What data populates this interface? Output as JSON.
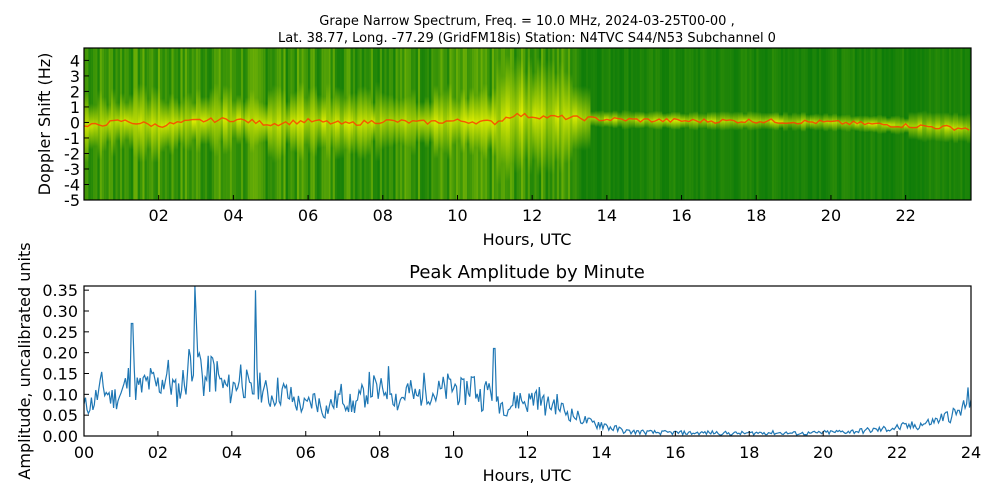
{
  "title": {
    "line1": "Grape Narrow Spectrum, Freq. = 10.0 MHz, 2024-03-25T00-00 ,",
    "line2": "Lat.  38.77, Long. -77.29 (GridFM18is) Station: N4TVC S44/N53 Subchannel 0"
  },
  "colors": {
    "spectrogram_background": "#0a7a0a",
    "spectrogram_signal": "#ffff00",
    "spectrogram_core": "#ff4000",
    "line_series": "#1f77b4"
  },
  "chart_data": [
    {
      "type": "heatmap",
      "title": "",
      "xlabel": "Hours, UTC",
      "ylabel": "Doppler Shift (Hz)",
      "xlim": [
        0,
        23.75
      ],
      "ylim": [
        -5,
        4.8
      ],
      "x_ticks": [
        2,
        4,
        6,
        8,
        10,
        12,
        14,
        16,
        18,
        20,
        22
      ],
      "x_tick_labels": [
        "02",
        "04",
        "06",
        "08",
        "10",
        "12",
        "14",
        "16",
        "18",
        "20",
        "22"
      ],
      "y_ticks": [
        4,
        3,
        2,
        1,
        0,
        -1,
        -2,
        -3,
        -4,
        -5
      ],
      "y_tick_labels": [
        "4",
        "3",
        "2",
        "1",
        "0",
        "-1",
        "-2",
        "-3",
        "-4",
        "-5"
      ],
      "doppler_trace": {
        "hours": [
          0,
          1,
          2,
          3,
          4,
          5,
          6,
          7,
          8,
          9,
          10,
          11,
          11.5,
          12,
          13,
          14,
          16,
          18,
          20,
          22,
          23.75
        ],
        "shift_hz": [
          -0.3,
          0.1,
          -0.2,
          0.1,
          0.2,
          -0.1,
          0.1,
          -0.1,
          0.1,
          0.0,
          0.1,
          0.0,
          0.5,
          0.4,
          0.3,
          0.2,
          0.1,
          0.1,
          0.0,
          -0.2,
          -0.4
        ]
      },
      "grid": false
    },
    {
      "type": "line",
      "title": "Peak Amplitude by Minute",
      "xlabel": "Hours, UTC",
      "ylabel": "Amplitude, uncalibrated units",
      "xlim": [
        0,
        24
      ],
      "ylim": [
        0,
        0.36
      ],
      "x_ticks": [
        0,
        2,
        4,
        6,
        8,
        10,
        12,
        14,
        16,
        18,
        20,
        22,
        24
      ],
      "x_tick_labels": [
        "00",
        "02",
        "04",
        "06",
        "08",
        "10",
        "12",
        "14",
        "16",
        "18",
        "20",
        "22",
        "24"
      ],
      "y_ticks": [
        0.0,
        0.05,
        0.1,
        0.15,
        0.2,
        0.25,
        0.3,
        0.35
      ],
      "y_tick_labels": [
        "0.00",
        "0.05",
        "0.10",
        "0.15",
        "0.20",
        "0.25",
        "0.30",
        "0.35"
      ],
      "grid": false,
      "series": [
        {
          "name": "",
          "x": [
            0,
            0.25,
            0.5,
            0.75,
            1,
            1.25,
            1.5,
            1.75,
            2,
            2.25,
            2.5,
            2.75,
            3,
            3.25,
            3.5,
            3.75,
            4,
            4.25,
            4.5,
            4.75,
            5,
            5.25,
            5.5,
            5.75,
            6,
            6.25,
            6.5,
            6.75,
            7,
            7.25,
            7.5,
            7.75,
            8,
            8.25,
            8.5,
            8.75,
            9,
            9.25,
            9.5,
            9.75,
            10,
            10.25,
            10.5,
            10.75,
            11,
            11.25,
            11.5,
            11.75,
            12,
            12.25,
            12.5,
            12.75,
            13,
            13.25,
            13.5,
            13.75,
            14,
            14.25,
            14.5,
            14.75,
            15,
            15.5,
            16,
            16.5,
            17,
            17.5,
            18,
            18.5,
            19,
            19.5,
            20,
            20.5,
            21,
            21.5,
            22,
            22.5,
            23,
            23.25,
            23.5,
            23.75,
            24
          ],
          "values": [
            0.07,
            0.08,
            0.12,
            0.09,
            0.1,
            0.14,
            0.11,
            0.13,
            0.12,
            0.15,
            0.1,
            0.14,
            0.22,
            0.13,
            0.16,
            0.12,
            0.11,
            0.15,
            0.1,
            0.13,
            0.09,
            0.11,
            0.1,
            0.08,
            0.07,
            0.09,
            0.06,
            0.08,
            0.1,
            0.07,
            0.09,
            0.12,
            0.1,
            0.13,
            0.08,
            0.11,
            0.09,
            0.12,
            0.1,
            0.11,
            0.12,
            0.1,
            0.13,
            0.09,
            0.12,
            0.08,
            0.07,
            0.09,
            0.08,
            0.1,
            0.07,
            0.08,
            0.06,
            0.05,
            0.04,
            0.03,
            0.03,
            0.02,
            0.015,
            0.01,
            0.01,
            0.008,
            0.008,
            0.007,
            0.008,
            0.006,
            0.007,
            0.008,
            0.007,
            0.006,
            0.008,
            0.01,
            0.012,
            0.015,
            0.02,
            0.025,
            0.035,
            0.045,
            0.05,
            0.06,
            0.1
          ]
        }
      ],
      "spikes": [
        {
          "x": 1.3,
          "value": 0.27
        },
        {
          "x": 3.0,
          "value": 0.36
        },
        {
          "x": 4.65,
          "value": 0.35
        },
        {
          "x": 11.1,
          "value": 0.21
        }
      ]
    }
  ]
}
